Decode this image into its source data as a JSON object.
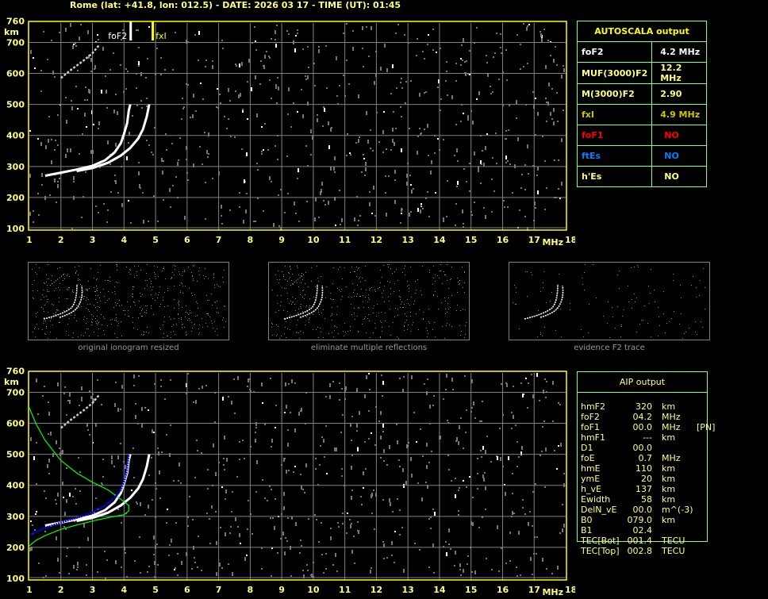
{
  "title": "Rome (lat: +41.8, lon: 012.5) - DATE: 2026 03 17 - TIME (UT): 01:45",
  "colors": {
    "axis": "#ffff00",
    "grid": "#808080",
    "table_border": "#7fff7f",
    "label": "#ffff80",
    "fxi": "#c8c800",
    "foF1": "#ff0000",
    "ftEs": "#0080ff",
    "profile": "#00ff00",
    "trace_fit": "#0000ff"
  },
  "chart_data": [
    {
      "type": "scatter",
      "name_label": "top-ionogram",
      "xlabel": "MHz",
      "ylabel": "km",
      "xlim": [
        1,
        18
      ],
      "ylim": [
        100,
        760
      ],
      "x_ticks": [
        "1",
        "2",
        "3",
        "4",
        "5",
        "6",
        "7",
        "8",
        "9",
        "10",
        "11",
        "12",
        "13",
        "14",
        "15",
        "16",
        "17",
        "18"
      ],
      "y_ticks": [
        "760",
        "700",
        "600",
        "500",
        "400",
        "300",
        "200",
        "100"
      ],
      "grid": true,
      "markers": [
        {
          "label": "foF2",
          "freq": 4.2,
          "color": "#ffffff"
        },
        {
          "label": "fxI",
          "freq": 4.9,
          "color": "#ffff00"
        }
      ],
      "o_trace": [
        [
          1.5,
          270
        ],
        [
          2,
          280
        ],
        [
          2.5,
          290
        ],
        [
          3,
          302
        ],
        [
          3.4,
          320
        ],
        [
          3.7,
          345
        ],
        [
          3.9,
          375
        ],
        [
          4.0,
          405
        ],
        [
          4.1,
          440
        ],
        [
          4.15,
          480
        ],
        [
          4.2,
          500
        ]
      ],
      "x_trace": [
        [
          2.5,
          285
        ],
        [
          3,
          295
        ],
        [
          3.5,
          312
        ],
        [
          3.9,
          335
        ],
        [
          4.2,
          360
        ],
        [
          4.45,
          390
        ],
        [
          4.6,
          420
        ],
        [
          4.72,
          460
        ],
        [
          4.8,
          500
        ]
      ],
      "second_hop": [
        [
          2,
          585
        ],
        [
          2.3,
          610
        ],
        [
          2.7,
          640
        ],
        [
          3,
          665
        ],
        [
          3.2,
          690
        ]
      ]
    },
    {
      "type": "scatter",
      "name_label": "bottom-ionogram",
      "xlabel": "MHz",
      "ylabel": "km",
      "xlim": [
        1,
        18
      ],
      "ylim": [
        100,
        760
      ],
      "x_ticks": [
        "1",
        "2",
        "3",
        "4",
        "5",
        "6",
        "7",
        "8",
        "9",
        "10",
        "11",
        "12",
        "13",
        "14",
        "15",
        "16",
        "17",
        "18"
      ],
      "y_ticks": [
        "760",
        "700",
        "600",
        "500",
        "400",
        "300",
        "200",
        "100"
      ],
      "grid": true,
      "profile": [
        [
          1,
          650
        ],
        [
          1.2,
          600
        ],
        [
          1.5,
          545
        ],
        [
          2,
          480
        ],
        [
          2.5,
          440
        ],
        [
          3,
          410
        ],
        [
          3.5,
          385
        ],
        [
          3.9,
          355
        ],
        [
          4.15,
          335
        ],
        [
          4.15,
          318
        ],
        [
          4.0,
          305
        ],
        [
          3.6,
          298
        ],
        [
          3,
          285
        ],
        [
          2.5,
          272
        ],
        [
          2,
          258
        ],
        [
          1.5,
          238
        ],
        [
          1.2,
          222
        ],
        [
          1,
          205
        ]
      ],
      "fitted_trace": [
        [
          1,
          240
        ],
        [
          1.5,
          263
        ],
        [
          2,
          280
        ],
        [
          2.5,
          295
        ],
        [
          3,
          312
        ],
        [
          3.4,
          335
        ],
        [
          3.7,
          360
        ],
        [
          3.9,
          385
        ],
        [
          4.0,
          410
        ],
        [
          4.08,
          440
        ],
        [
          4.12,
          470
        ],
        [
          4.15,
          500
        ]
      ]
    }
  ],
  "thumbnails": [
    {
      "caption": "original ionogram resized"
    },
    {
      "caption": "eliminate multiple reflections"
    },
    {
      "caption": "evidence F2 trace"
    }
  ],
  "autoscala": {
    "header": "AUTOSCALA output",
    "rows": [
      {
        "name": "foF2",
        "value": "4.2 MHz",
        "color": "#ffffff"
      },
      {
        "name": "MUF(3000)F2",
        "value": "12.2 MHz",
        "color": "#ffff80"
      },
      {
        "name": "M(3000)F2",
        "value": "2.90",
        "color": "#ffff80"
      },
      {
        "name": "fxI",
        "value": "4.9 MHz",
        "color": "#c8c800"
      },
      {
        "name": "foF1",
        "value": "NO",
        "color": "#ff0000"
      },
      {
        "name": "ftEs",
        "value": "NO",
        "color": "#0080ff"
      },
      {
        "name": "h'Es",
        "value": "NO",
        "color": "#ffff80"
      }
    ]
  },
  "aip": {
    "header": "AIP output",
    "rows": [
      {
        "name": "hmF2",
        "value": "320",
        "unit": "km",
        "extra": ""
      },
      {
        "name": "foF2",
        "value": "04.2",
        "unit": "MHz",
        "extra": ""
      },
      {
        "name": "foF1",
        "value": "00.0",
        "unit": "MHz",
        "extra": "[PN]"
      },
      {
        "name": "hmF1",
        "value": "---",
        "unit": "km",
        "extra": ""
      },
      {
        "name": "D1",
        "value": "00.0",
        "unit": "",
        "extra": ""
      },
      {
        "name": "foE",
        "value": "0.7",
        "unit": "MHz",
        "extra": ""
      },
      {
        "name": "hmE",
        "value": "110",
        "unit": "km",
        "extra": ""
      },
      {
        "name": "ymE",
        "value": "20",
        "unit": "km",
        "extra": ""
      },
      {
        "name": "h_vE",
        "value": "137",
        "unit": "km",
        "extra": ""
      },
      {
        "name": "Ewidth",
        "value": "58",
        "unit": "km",
        "extra": ""
      },
      {
        "name": "DelN_vE",
        "value": "00.0",
        "unit": "m^(-3)",
        "extra": ""
      },
      {
        "name": "B0",
        "value": "079.0",
        "unit": "km",
        "extra": ""
      },
      {
        "name": "B1",
        "value": "02.4",
        "unit": "",
        "extra": ""
      },
      {
        "name": "TEC[Bot]",
        "value": "001.4",
        "unit": "TECU",
        "extra": ""
      },
      {
        "name": "TEC[Top]",
        "value": "002.8",
        "unit": "TECU",
        "extra": ""
      }
    ]
  }
}
